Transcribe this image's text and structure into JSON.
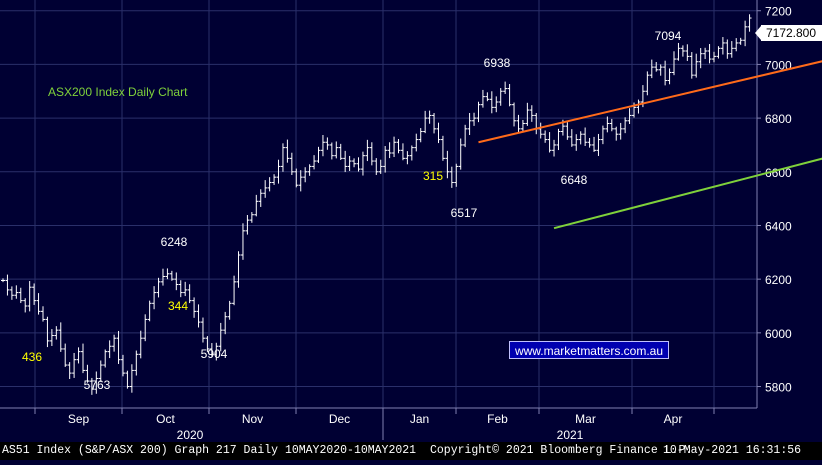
{
  "chart_data": {
    "type": "bar",
    "subtype": "ohlc",
    "title": "ASX200 Index Daily Chart",
    "ylim": [
      5720,
      7240
    ],
    "yticks": [
      5800,
      6000,
      6200,
      6400,
      6600,
      6800,
      7000,
      7200
    ],
    "ytick_labels": [
      "5800",
      "6000",
      "6200",
      "6400",
      "6600",
      "6800",
      "7000",
      "7200"
    ],
    "xtick_labels": [
      "Sep",
      "Oct",
      "Nov",
      "Dec",
      "Jan",
      "Feb",
      "Mar",
      "Apr"
    ],
    "year_labels": [
      "2020",
      "2021"
    ],
    "last_value_label": "7172.800",
    "grid": true,
    "series": [
      {
        "values": [
          6195,
          6160,
          6140,
          6150,
          6120,
          6100,
          6170,
          6120,
          6080,
          6050,
          5970,
          5990,
          6010,
          5940,
          5880,
          5850,
          5900,
          5930,
          5860,
          5820,
          5790,
          5830,
          5880,
          5930,
          5950,
          5980,
          5900,
          5850,
          5800,
          5860,
          5920,
          5980,
          6050,
          6110,
          6150,
          6190,
          6210,
          6220,
          6200,
          6180,
          6150,
          6160,
          6120,
          6080,
          6040,
          5980,
          5940,
          5920,
          5950,
          6010,
          6060,
          6110,
          6190,
          6290,
          6380,
          6420,
          6440,
          6490,
          6520,
          6540,
          6560,
          6580,
          6620,
          6690,
          6650,
          6600,
          6550,
          6580,
          6600,
          6620,
          6640,
          6680,
          6710,
          6700,
          6660,
          6690,
          6650,
          6620,
          6640,
          6630,
          6610,
          6660,
          6690,
          6640,
          6600,
          6620,
          6680,
          6670,
          6710,
          6680,
          6650,
          6660,
          6690,
          6720,
          6750,
          6800,
          6810,
          6760,
          6720,
          6650,
          6600,
          6560,
          6620,
          6700,
          6760,
          6790,
          6800,
          6850,
          6880,
          6870,
          6840,
          6860,
          6900,
          6910,
          6850,
          6790,
          6760,
          6780,
          6830,
          6810,
          6760,
          6740,
          6720,
          6680,
          6700,
          6750,
          6770,
          6730,
          6700,
          6720,
          6740,
          6710,
          6700,
          6680,
          6720,
          6760,
          6780,
          6760,
          6740,
          6760,
          6790,
          6810,
          6840,
          6860,
          6900,
          6960,
          6990,
          6980,
          6990,
          6940,
          6970,
          7020,
          7060,
          7050,
          7030,
          6960,
          7010,
          7040,
          7050,
          7020,
          7030,
          7060,
          7080,
          7040,
          7060,
          7080,
          7090,
          7140,
          7172.8
        ],
        "open_close_ticks": "per bar",
        "color": "#ffffff"
      }
    ],
    "trendlines": [
      {
        "color": "#ff6a1a",
        "from": {
          "bar": 107,
          "value": 6710
        },
        "to": {
          "bar": 230,
          "value": 7190
        }
      },
      {
        "color": "#7fd13b",
        "from": {
          "bar": 124,
          "value": 6390
        },
        "to": {
          "bar": 230,
          "value": 6845
        }
      }
    ],
    "annotations": [
      {
        "text": "6938",
        "color": "#ffffff"
      },
      {
        "text": "7094",
        "color": "#ffffff"
      },
      {
        "text": "6248",
        "color": "#ffffff"
      },
      {
        "text": "344",
        "color": "#ffff00"
      },
      {
        "text": "5904",
        "color": "#ffffff"
      },
      {
        "text": "436",
        "color": "#ffff00"
      },
      {
        "text": "5763",
        "color": "#ffffff"
      },
      {
        "text": "315",
        "color": "#ffff00"
      },
      {
        "text": "6517",
        "color": "#ffffff"
      },
      {
        "text": "6648",
        "color": "#ffffff"
      }
    ]
  },
  "watermark": "www.marketmatters.com.au",
  "footer": {
    "left": "AS51 Index (S&P/ASX 200) Graph 217  Daily 10MAY2020-10MAY2021",
    "copyright": "Copyright© 2021 Bloomberg Finance L.P.",
    "timestamp": "10-May-2021 16:31:56"
  },
  "colors": {
    "background": "#000033",
    "grid": "#2a2f6a",
    "title": "#7fd13b",
    "resistance": "#ff6a1a",
    "support": "#7fd13b"
  }
}
